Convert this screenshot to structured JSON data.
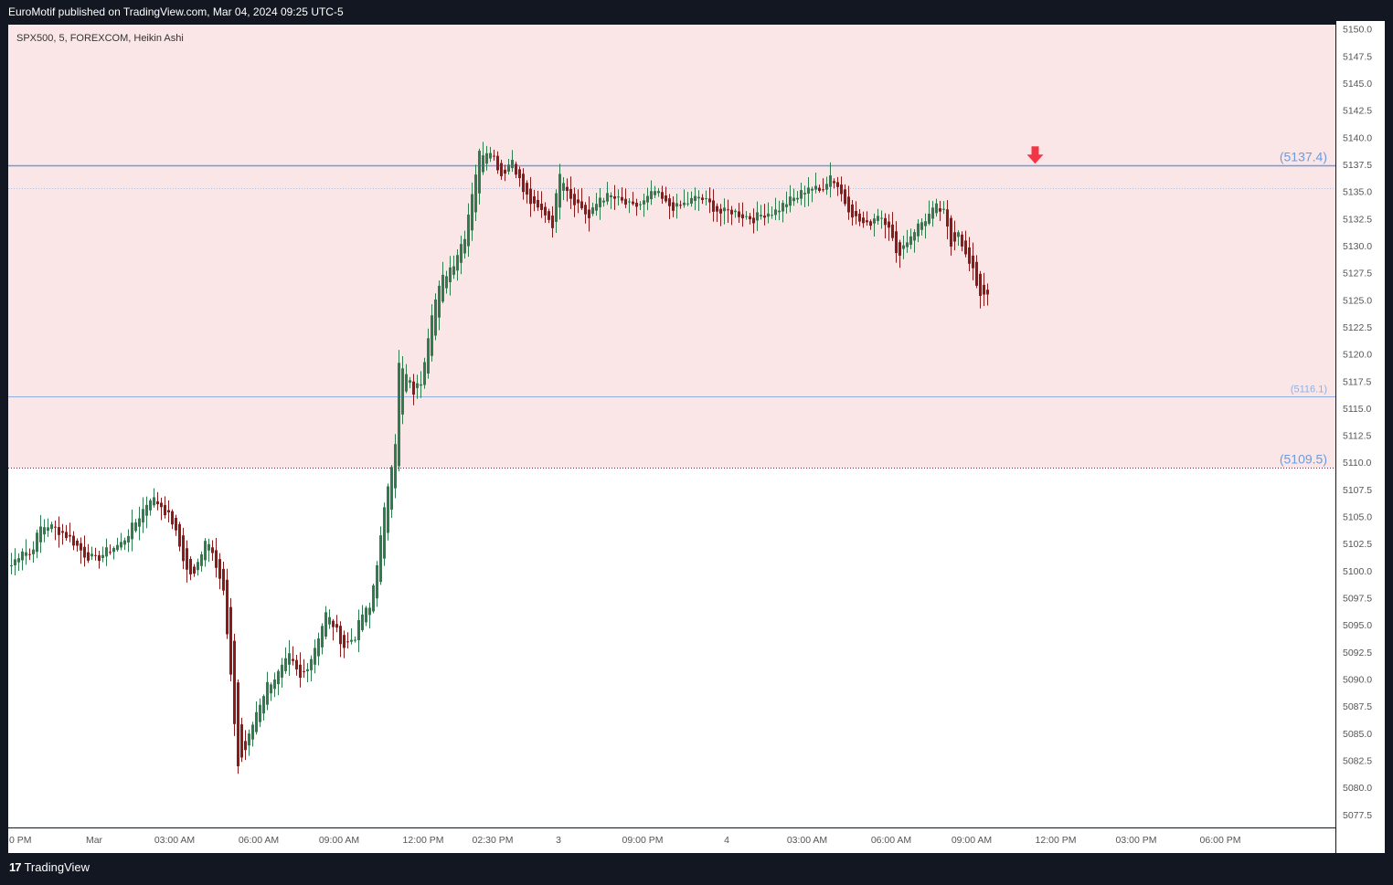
{
  "header": {
    "publisher_line": "EuroMotif published on TradingView.com, Mar 04, 2024 09:25 UTC-5"
  },
  "footer": {
    "logo_mark": "17",
    "logo_text": "TradingView"
  },
  "colors": {
    "background": "#131722",
    "chart_bg": "#ffffff",
    "zone_fill": "#fbe6e7",
    "up_candle": "#2e7d4f",
    "down_candle": "#8b1a1a",
    "level_line": "#6b9be0",
    "arrow": "#f23645",
    "axis_text": "#555555"
  },
  "chart_data": {
    "type": "candlestick",
    "symbol_label": "SPX500, 5, FOREXCOM, Heikin Ashi",
    "ylim": [
      5076.3,
      5150.4
    ],
    "y_ticks": [
      "5150.0",
      "5147.5",
      "5145.0",
      "5142.5",
      "5140.0",
      "5137.5",
      "5135.0",
      "5132.5",
      "5130.0",
      "5127.5",
      "5125.0",
      "5122.5",
      "5120.0",
      "5117.5",
      "5115.0",
      "5112.5",
      "5110.0",
      "5107.5",
      "5105.0",
      "5102.5",
      "5100.0",
      "5097.5",
      "5095.0",
      "5092.5",
      "5090.0",
      "5087.5",
      "5085.0",
      "5082.5",
      "5080.0",
      "5077.5"
    ],
    "x_ticks": [
      {
        "label": "0 PM",
        "bar": -1
      },
      {
        "label": "Mar",
        "bar": 23
      },
      {
        "label": "03:00 AM",
        "bar": 45
      },
      {
        "label": "06:00 AM",
        "bar": 68
      },
      {
        "label": "09:00 AM",
        "bar": 90
      },
      {
        "label": "12:00 PM",
        "bar": 113
      },
      {
        "label": "02:30 PM",
        "bar": 132
      },
      {
        "label": "3",
        "bar": 150
      },
      {
        "label": "09:00 PM",
        "bar": 173
      },
      {
        "label": "4",
        "bar": 196
      },
      {
        "label": "03:00 AM",
        "bar": 218
      },
      {
        "label": "06:00 AM",
        "bar": 241
      },
      {
        "label": "09:00 AM",
        "bar": 263
      },
      {
        "label": "12:00 PM",
        "bar": 286
      },
      {
        "label": "03:00 PM",
        "bar": 308
      },
      {
        "label": "06:00 PM",
        "bar": 331
      }
    ],
    "zone": {
      "top": 5150.4,
      "bottom": 5109.5
    },
    "levels": [
      {
        "value": 5137.4,
        "label": "(5137.4)",
        "style": "solid-bold"
      },
      {
        "value": 5135.3,
        "label": "",
        "style": "dotted"
      },
      {
        "value": 5116.1,
        "label": "(5116.1)",
        "style": "solid-thin"
      },
      {
        "value": 5109.5,
        "label": "(5109.5)",
        "style": "dotted-dark"
      }
    ],
    "arrow_down_bar": 280,
    "anchors": [
      [
        0,
        5100.5
      ],
      [
        3,
        5102.0
      ],
      [
        5,
        5101.5
      ],
      [
        8,
        5104.0
      ],
      [
        10,
        5104.2
      ],
      [
        14,
        5103.5
      ],
      [
        16,
        5103.0
      ],
      [
        20,
        5101.5
      ],
      [
        23,
        5101.0
      ],
      [
        27,
        5102.0
      ],
      [
        30,
        5102.5
      ],
      [
        34,
        5104.5
      ],
      [
        38,
        5106.8
      ],
      [
        41,
        5106.0
      ],
      [
        44,
        5104.5
      ],
      [
        48,
        5100.0
      ],
      [
        50,
        5099.5
      ],
      [
        53,
        5103.0
      ],
      [
        55,
        5102.0
      ],
      [
        58,
        5098.0
      ],
      [
        60,
        5090.0
      ],
      [
        62,
        5082.0
      ],
      [
        64,
        5083.5
      ],
      [
        67,
        5087.0
      ],
      [
        70,
        5089.5
      ],
      [
        73,
        5090.5
      ],
      [
        76,
        5092.0
      ],
      [
        79,
        5090.0
      ],
      [
        82,
        5092.0
      ],
      [
        84,
        5094.0
      ],
      [
        86,
        5096.0
      ],
      [
        88,
        5095.0
      ],
      [
        91,
        5093.0
      ],
      [
        94,
        5094.0
      ],
      [
        96,
        5096.0
      ],
      [
        98,
        5096.5
      ],
      [
        101,
        5103.0
      ],
      [
        103,
        5108.0
      ],
      [
        105,
        5112.0
      ],
      [
        106,
        5119.0
      ],
      [
        108,
        5118.0
      ],
      [
        110,
        5116.5
      ],
      [
        112,
        5117.5
      ],
      [
        115,
        5124.0
      ],
      [
        118,
        5127.0
      ],
      [
        121,
        5128.5
      ],
      [
        124,
        5131.0
      ],
      [
        126,
        5135.0
      ],
      [
        128,
        5138.5
      ],
      [
        131,
        5139.0
      ],
      [
        134,
        5136.5
      ],
      [
        137,
        5138.0
      ],
      [
        140,
        5135.0
      ],
      [
        143,
        5133.5
      ],
      [
        146,
        5133.0
      ],
      [
        148,
        5132.0
      ],
      [
        150,
        5137.0
      ],
      [
        153,
        5134.5
      ],
      [
        156,
        5133.5
      ],
      [
        158,
        5132.5
      ],
      [
        161,
        5134.5
      ],
      [
        164,
        5134.5
      ],
      [
        167,
        5134.0
      ],
      [
        170,
        5133.5
      ],
      [
        173,
        5134.0
      ],
      [
        176,
        5135.0
      ],
      [
        179,
        5133.8
      ],
      [
        182,
        5133.5
      ],
      [
        185,
        5134.0
      ],
      [
        188,
        5134.5
      ],
      [
        191,
        5133.8
      ],
      [
        194,
        5133.0
      ],
      [
        197,
        5133.2
      ],
      [
        200,
        5132.8
      ],
      [
        203,
        5132.5
      ],
      [
        206,
        5133.0
      ],
      [
        209,
        5133.2
      ],
      [
        212,
        5134.0
      ],
      [
        215,
        5134.5
      ],
      [
        218,
        5135.5
      ],
      [
        221,
        5135.0
      ],
      [
        224,
        5136.5
      ],
      [
        226,
        5135.5
      ],
      [
        228,
        5134.0
      ],
      [
        231,
        5132.5
      ],
      [
        234,
        5131.8
      ],
      [
        237,
        5133.0
      ],
      [
        240,
        5132.0
      ],
      [
        242,
        5129.0
      ],
      [
        244,
        5130.0
      ],
      [
        247,
        5131.5
      ],
      [
        250,
        5132.5
      ],
      [
        253,
        5133.5
      ],
      [
        255,
        5133.0
      ],
      [
        257,
        5130.0
      ],
      [
        259,
        5131.5
      ],
      [
        261,
        5129.0
      ],
      [
        263,
        5127.5
      ],
      [
        265,
        5125.5
      ],
      [
        267,
        5125.8
      ]
    ]
  }
}
